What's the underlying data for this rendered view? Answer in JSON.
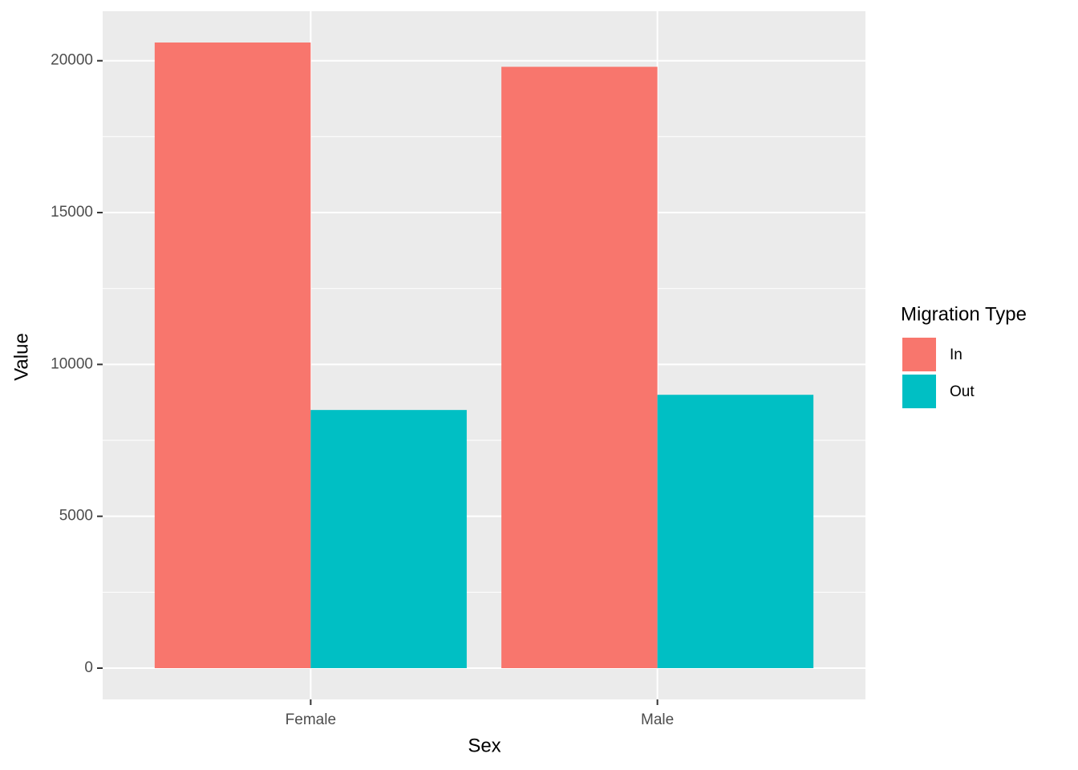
{
  "chart_data": {
    "type": "bar",
    "x_label": "Sex",
    "y_label": "Value",
    "categories": [
      "Female",
      "Male"
    ],
    "legend_title": "Migration Type",
    "series": [
      {
        "name": "In",
        "color": "#f8766d",
        "values": [
          20600,
          19800
        ]
      },
      {
        "name": "Out",
        "color": "#00bfc4",
        "values": [
          8500,
          9000
        ]
      }
    ],
    "ylim": [
      -1030,
      21630
    ],
    "yticks": [
      0,
      5000,
      10000,
      15000,
      20000
    ],
    "grid": true,
    "legend_position": "right"
  }
}
